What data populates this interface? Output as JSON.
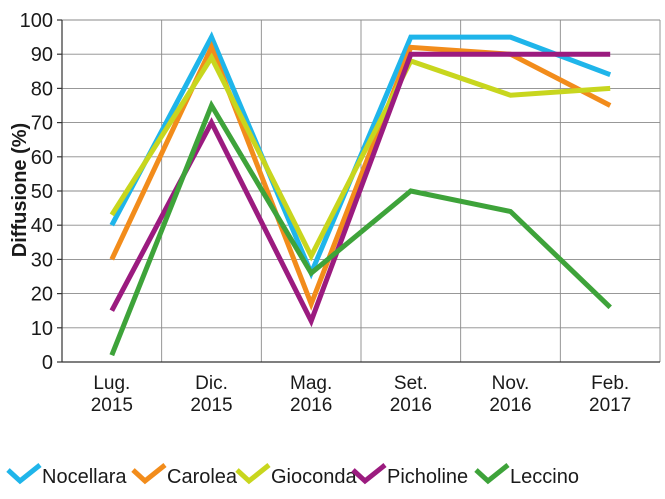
{
  "chart_data": {
    "type": "line",
    "ylabel": "Diffusione (%)",
    "xlabel": "",
    "ylim": [
      0,
      100
    ],
    "yticks": [
      0,
      10,
      20,
      30,
      40,
      50,
      60,
      70,
      80,
      90,
      100
    ],
    "grid": true,
    "legend_position": "bottom",
    "categories": [
      [
        "Lug.",
        "2015"
      ],
      [
        "Dic.",
        "2015"
      ],
      [
        "Mag.",
        "2016"
      ],
      [
        "Set.",
        "2016"
      ],
      [
        "Nov.",
        "2016"
      ],
      [
        "Feb.",
        "2017"
      ]
    ],
    "series": [
      {
        "name": "Nocellara",
        "color": "#1fb5ea",
        "values": [
          40,
          95,
          26,
          95,
          95,
          84
        ]
      },
      {
        "name": "Carolea",
        "color": "#f28c1b",
        "values": [
          30,
          92,
          17,
          92,
          90,
          75
        ]
      },
      {
        "name": "Gioconda",
        "color": "#c8d61e",
        "values": [
          43,
          89,
          31,
          88,
          78,
          80
        ]
      },
      {
        "name": "Picholine",
        "color": "#9b1b7f",
        "values": [
          15,
          70,
          12,
          90,
          90,
          90
        ]
      },
      {
        "name": "Leccino",
        "color": "#3ea33a",
        "values": [
          2,
          75,
          26,
          50,
          44,
          16
        ]
      }
    ]
  }
}
